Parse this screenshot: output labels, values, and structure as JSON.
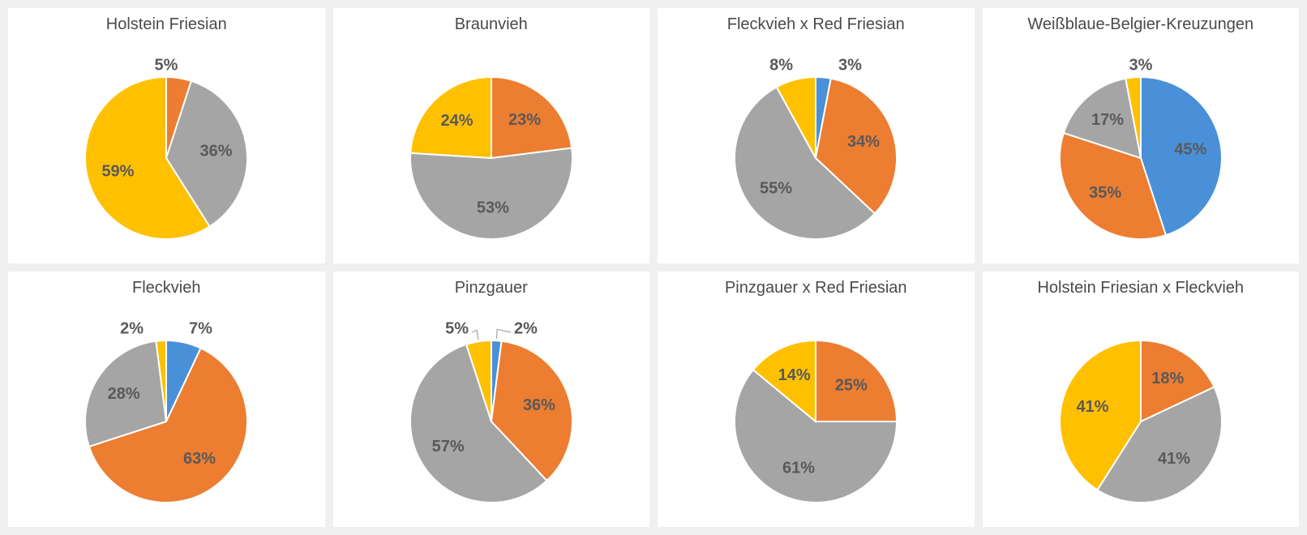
{
  "background_color": "#f0f0f0",
  "panel_background": "#ffffff",
  "font_family": "Segoe UI, Arial, sans-serif",
  "title_fontsize": 20,
  "title_color": "#4a4a4a",
  "label_fontsize": 20,
  "label_color": "#595959",
  "label_fontweight": 600,
  "leader_color": "#a6a6a6",
  "pie_outline_color": "#ffffff",
  "pie_outline_width": 2,
  "colors": {
    "blue": "#4a90d9",
    "orange": "#ec7d31",
    "gray": "#a5a5a5",
    "yellow": "#ffc000"
  },
  "pie_radius": 100,
  "start_angle_deg": 0,
  "direction": "clockwise",
  "charts": [
    {
      "title": "Holstein Friesian",
      "slices": [
        {
          "value": 5,
          "color": "orange",
          "label": "5%",
          "label_placement": "outside",
          "label_pos": "top"
        },
        {
          "value": 36,
          "color": "gray",
          "label": "36%",
          "label_placement": "inside"
        },
        {
          "value": 59,
          "color": "yellow",
          "label": "59%",
          "label_placement": "inside"
        }
      ]
    },
    {
      "title": "Braunvieh",
      "slices": [
        {
          "value": 23,
          "color": "orange",
          "label": "23%",
          "label_placement": "inside"
        },
        {
          "value": 53,
          "color": "gray",
          "label": "53%",
          "label_placement": "inside"
        },
        {
          "value": 24,
          "color": "yellow",
          "label": "24%",
          "label_placement": "inside"
        }
      ]
    },
    {
      "title": "Fleckvieh x Red Friesian",
      "slices": [
        {
          "value": 3,
          "color": "blue",
          "label": "3%",
          "label_placement": "outside",
          "label_pos": "top-right"
        },
        {
          "value": 34,
          "color": "orange",
          "label": "34%",
          "label_placement": "inside"
        },
        {
          "value": 55,
          "color": "gray",
          "label": "55%",
          "label_placement": "inside"
        },
        {
          "value": 8,
          "color": "yellow",
          "label": "8%",
          "label_placement": "outside",
          "label_pos": "top-left"
        }
      ]
    },
    {
      "title": "Weißblaue-Belgier-Kreuzungen",
      "slices": [
        {
          "value": 45,
          "color": "blue",
          "label": "45%",
          "label_placement": "inside"
        },
        {
          "value": 35,
          "color": "orange",
          "label": "35%",
          "label_placement": "inside"
        },
        {
          "value": 17,
          "color": "gray",
          "label": "17%",
          "label_placement": "inside"
        },
        {
          "value": 3,
          "color": "yellow",
          "label": "3%",
          "label_placement": "outside",
          "label_pos": "top"
        }
      ]
    },
    {
      "title": "Fleckvieh",
      "slices": [
        {
          "value": 7,
          "color": "blue",
          "label": "7%",
          "label_placement": "outside",
          "label_pos": "top-right"
        },
        {
          "value": 63,
          "color": "orange",
          "label": "63%",
          "label_placement": "inside"
        },
        {
          "value": 28,
          "color": "gray",
          "label": "28%",
          "label_placement": "inside"
        },
        {
          "value": 2,
          "color": "yellow",
          "label": "2%",
          "label_placement": "outside",
          "label_pos": "top-left"
        }
      ]
    },
    {
      "title": "Pinzgauer",
      "slices": [
        {
          "value": 2,
          "color": "blue",
          "label": "2%",
          "label_placement": "outside",
          "label_pos": "top-right",
          "leader": true
        },
        {
          "value": 36,
          "color": "orange",
          "label": "36%",
          "label_placement": "inside"
        },
        {
          "value": 57,
          "color": "gray",
          "label": "57%",
          "label_placement": "inside"
        },
        {
          "value": 5,
          "color": "yellow",
          "label": "5%",
          "label_placement": "outside",
          "label_pos": "top-left",
          "leader": true
        }
      ]
    },
    {
      "title": "Pinzgauer x Red Friesian",
      "slices": [
        {
          "value": 25,
          "color": "orange",
          "label": "25%",
          "label_placement": "inside"
        },
        {
          "value": 61,
          "color": "gray",
          "label": "61%",
          "label_placement": "inside"
        },
        {
          "value": 14,
          "color": "yellow",
          "label": "14%",
          "label_placement": "inside"
        }
      ]
    },
    {
      "title": "Holstein Friesian x Fleckvieh",
      "slices": [
        {
          "value": 18,
          "color": "orange",
          "label": "18%",
          "label_placement": "inside"
        },
        {
          "value": 41,
          "color": "gray",
          "label": "41%",
          "label_placement": "inside"
        },
        {
          "value": 41,
          "color": "yellow",
          "label": "41%",
          "label_placement": "inside"
        }
      ]
    }
  ]
}
